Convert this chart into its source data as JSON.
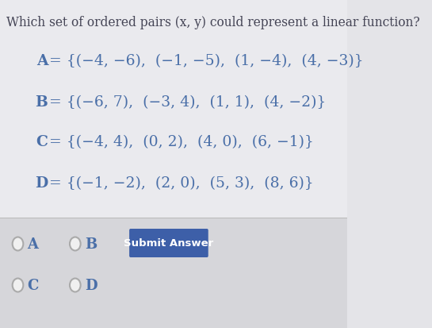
{
  "title": "Which set of ordered pairs (x, y) could represent a linear function?",
  "line_A": "A = {(−4,−6),  (−1,−5),  (1,−4),  (4,−3)}",
  "line_B": "B = {(−6, 7),  (−3, 4),  (1, 1),  (4, −2)}",
  "line_C": "C = {(−4, 4),  (0, 2),  (4, 0),  (6, −1)}",
  "line_D": "D = {(−1, −2),  (2, 0),  (5, 3),  (8, 6)}",
  "button_text": "Submit Answer",
  "button_color": "#3d5fa8",
  "button_text_color": "#ffffff",
  "bg_color": "#e4e4e8",
  "answer_bg_color": "#d8d8dc",
  "text_color": "#4a6fa8",
  "title_color": "#444455",
  "radio_color": "#999999",
  "option_color": "#4a6fa8"
}
